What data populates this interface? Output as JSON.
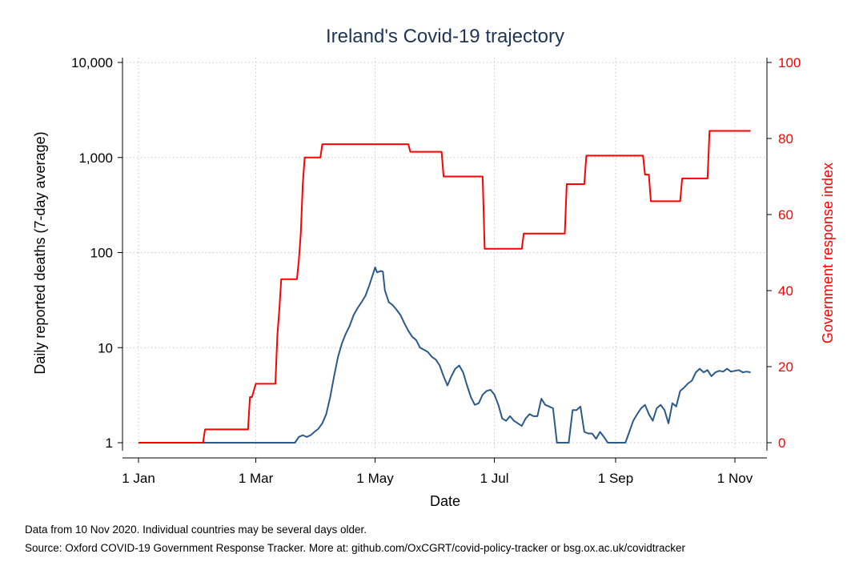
{
  "chart_data": {
    "type": "line",
    "title": "Ireland's Covid-19 trajectory",
    "xlabel": "Date",
    "ylabel_left": "Daily reported deaths (7-day average)",
    "ylabel_right": "Government response index",
    "x_ticks": [
      {
        "date": "2020-01-01",
        "label": "1 Jan"
      },
      {
        "date": "2020-03-01",
        "label": "1 Mar"
      },
      {
        "date": "2020-05-01",
        "label": "1 May"
      },
      {
        "date": "2020-07-01",
        "label": "1 Jul"
      },
      {
        "date": "2020-09-01",
        "label": "1 Sep"
      },
      {
        "date": "2020-11-01",
        "label": "1 Nov"
      }
    ],
    "xlim": [
      "2020-01-01",
      "2020-11-10"
    ],
    "y_left": {
      "scale": "log",
      "lim": [
        1,
        10000
      ],
      "ticks": [
        {
          "value": 1,
          "label": "1"
        },
        {
          "value": 10,
          "label": "10"
        },
        {
          "value": 100,
          "label": "100"
        },
        {
          "value": 1000,
          "label": "1,000"
        },
        {
          "value": 10000,
          "label": "10,000"
        }
      ]
    },
    "y_right": {
      "scale": "linear",
      "lim": [
        0,
        100
      ],
      "ticks": [
        {
          "value": 0,
          "label": "0"
        },
        {
          "value": 20,
          "label": "20"
        },
        {
          "value": 40,
          "label": "40"
        },
        {
          "value": 60,
          "label": "60"
        },
        {
          "value": 80,
          "label": "80"
        },
        {
          "value": 100,
          "label": "100"
        }
      ]
    },
    "grid": true,
    "series": [
      {
        "axis": "left",
        "color": "#2b5a8a",
        "points": [
          [
            "2020-01-01",
            1
          ],
          [
            "2020-03-21",
            1
          ],
          [
            "2020-03-23",
            1.15
          ],
          [
            "2020-03-25",
            1.2
          ],
          [
            "2020-03-27",
            1.15
          ],
          [
            "2020-03-29",
            1.2
          ],
          [
            "2020-03-31",
            1.3
          ],
          [
            "2020-04-02",
            1.4
          ],
          [
            "2020-04-04",
            1.6
          ],
          [
            "2020-04-06",
            2.0
          ],
          [
            "2020-04-08",
            3.0
          ],
          [
            "2020-04-10",
            5.0
          ],
          [
            "2020-04-12",
            8.0
          ],
          [
            "2020-04-14",
            11
          ],
          [
            "2020-04-16",
            14
          ],
          [
            "2020-04-18",
            17
          ],
          [
            "2020-04-20",
            22
          ],
          [
            "2020-04-22",
            26
          ],
          [
            "2020-04-24",
            30
          ],
          [
            "2020-04-26",
            35
          ],
          [
            "2020-04-28",
            45
          ],
          [
            "2020-04-30",
            60
          ],
          [
            "2020-05-01",
            70
          ],
          [
            "2020-05-02",
            62
          ],
          [
            "2020-05-04",
            64
          ],
          [
            "2020-05-05",
            63
          ],
          [
            "2020-05-06",
            40
          ],
          [
            "2020-05-08",
            30
          ],
          [
            "2020-05-10",
            28
          ],
          [
            "2020-05-12",
            25
          ],
          [
            "2020-05-14",
            22
          ],
          [
            "2020-05-16",
            18
          ],
          [
            "2020-05-18",
            15
          ],
          [
            "2020-05-20",
            13
          ],
          [
            "2020-05-22",
            12
          ],
          [
            "2020-05-24",
            10
          ],
          [
            "2020-05-26",
            9.5
          ],
          [
            "2020-05-28",
            9
          ],
          [
            "2020-05-30",
            8
          ],
          [
            "2020-06-01",
            7.5
          ],
          [
            "2020-06-03",
            6.5
          ],
          [
            "2020-06-05",
            5
          ],
          [
            "2020-06-07",
            4
          ],
          [
            "2020-06-09",
            5
          ],
          [
            "2020-06-11",
            6
          ],
          [
            "2020-06-13",
            6.5
          ],
          [
            "2020-06-15",
            5.5
          ],
          [
            "2020-06-17",
            4
          ],
          [
            "2020-06-19",
            3
          ],
          [
            "2020-06-21",
            2.5
          ],
          [
            "2020-06-23",
            2.6
          ],
          [
            "2020-06-25",
            3.2
          ],
          [
            "2020-06-27",
            3.5
          ],
          [
            "2020-06-29",
            3.6
          ],
          [
            "2020-07-01",
            3.2
          ],
          [
            "2020-07-03",
            2.5
          ],
          [
            "2020-07-05",
            1.8
          ],
          [
            "2020-07-07",
            1.7
          ],
          [
            "2020-07-09",
            1.9
          ],
          [
            "2020-07-11",
            1.7
          ],
          [
            "2020-07-13",
            1.6
          ],
          [
            "2020-07-15",
            1.5
          ],
          [
            "2020-07-17",
            1.8
          ],
          [
            "2020-07-19",
            2.0
          ],
          [
            "2020-07-21",
            1.9
          ],
          [
            "2020-07-23",
            1.9
          ],
          [
            "2020-07-25",
            2.9
          ],
          [
            "2020-07-27",
            2.5
          ],
          [
            "2020-07-29",
            2.4
          ],
          [
            "2020-07-31",
            2.3
          ],
          [
            "2020-08-02",
            1
          ],
          [
            "2020-08-08",
            1
          ],
          [
            "2020-08-10",
            2.2
          ],
          [
            "2020-08-12",
            2.2
          ],
          [
            "2020-08-14",
            2.4
          ],
          [
            "2020-08-16",
            1.3
          ],
          [
            "2020-08-18",
            1.25
          ],
          [
            "2020-08-20",
            1.25
          ],
          [
            "2020-08-22",
            1.1
          ],
          [
            "2020-08-24",
            1.3
          ],
          [
            "2020-08-26",
            1.15
          ],
          [
            "2020-08-28",
            1
          ],
          [
            "2020-09-06",
            1
          ],
          [
            "2020-09-08",
            1.3
          ],
          [
            "2020-09-10",
            1.7
          ],
          [
            "2020-09-12",
            2.0
          ],
          [
            "2020-09-14",
            2.3
          ],
          [
            "2020-09-16",
            2.5
          ],
          [
            "2020-09-18",
            2.0
          ],
          [
            "2020-09-20",
            1.7
          ],
          [
            "2020-09-22",
            2.3
          ],
          [
            "2020-09-24",
            2.5
          ],
          [
            "2020-09-26",
            2.2
          ],
          [
            "2020-09-28",
            1.6
          ],
          [
            "2020-09-30",
            2.6
          ],
          [
            "2020-10-02",
            2.4
          ],
          [
            "2020-10-04",
            3.5
          ],
          [
            "2020-10-06",
            3.8
          ],
          [
            "2020-10-08",
            4.2
          ],
          [
            "2020-10-10",
            4.5
          ],
          [
            "2020-10-12",
            5.5
          ],
          [
            "2020-10-14",
            6
          ],
          [
            "2020-10-16",
            5.5
          ],
          [
            "2020-10-18",
            5.8
          ],
          [
            "2020-10-20",
            5.0
          ],
          [
            "2020-10-22",
            5.5
          ],
          [
            "2020-10-24",
            5.7
          ],
          [
            "2020-10-26",
            5.6
          ],
          [
            "2020-10-28",
            6.0
          ],
          [
            "2020-10-30",
            5.6
          ],
          [
            "2020-11-01",
            5.7
          ],
          [
            "2020-11-03",
            5.8
          ],
          [
            "2020-11-05",
            5.5
          ],
          [
            "2020-11-07",
            5.6
          ],
          [
            "2020-11-09",
            5.5
          ]
        ]
      },
      {
        "axis": "right",
        "color": "#ff0000",
        "points": [
          [
            "2020-01-01",
            0
          ],
          [
            "2020-02-03",
            0
          ],
          [
            "2020-02-04",
            3.5
          ],
          [
            "2020-02-26",
            3.5
          ],
          [
            "2020-02-27",
            12
          ],
          [
            "2020-02-28",
            12
          ],
          [
            "2020-03-01",
            15.5
          ],
          [
            "2020-03-11",
            15.5
          ],
          [
            "2020-03-12",
            28
          ],
          [
            "2020-03-13",
            35
          ],
          [
            "2020-03-14",
            43
          ],
          [
            "2020-03-22",
            43
          ],
          [
            "2020-03-23",
            48
          ],
          [
            "2020-03-24",
            55
          ],
          [
            "2020-03-25",
            68
          ],
          [
            "2020-03-26",
            75
          ],
          [
            "2020-04-03",
            75
          ],
          [
            "2020-04-04",
            78.5
          ],
          [
            "2020-05-18",
            78.5
          ],
          [
            "2020-05-19",
            76.5
          ],
          [
            "2020-06-04",
            76.5
          ],
          [
            "2020-06-05",
            70
          ],
          [
            "2020-06-25",
            70
          ],
          [
            "2020-06-26",
            51
          ],
          [
            "2020-07-15",
            51
          ],
          [
            "2020-07-16",
            55
          ],
          [
            "2020-08-06",
            55
          ],
          [
            "2020-08-07",
            68
          ],
          [
            "2020-08-16",
            68
          ],
          [
            "2020-08-17",
            75.5
          ],
          [
            "2020-09-15",
            75.5
          ],
          [
            "2020-09-16",
            70.5
          ],
          [
            "2020-09-18",
            70.5
          ],
          [
            "2020-09-19",
            63.5
          ],
          [
            "2020-10-04",
            63.5
          ],
          [
            "2020-10-05",
            69.5
          ],
          [
            "2020-10-18",
            69.5
          ],
          [
            "2020-10-19",
            82
          ],
          [
            "2020-11-09",
            82
          ]
        ]
      }
    ]
  },
  "footnotes": {
    "data_note": "Data from 10 Nov 2020. Individual countries may be several days older.",
    "source_note": "Source: Oxford COVID-19 Government Response Tracker. More at: github.com/OxCGRT/covid-policy-tracker or bsg.ox.ac.uk/covidtracker"
  }
}
